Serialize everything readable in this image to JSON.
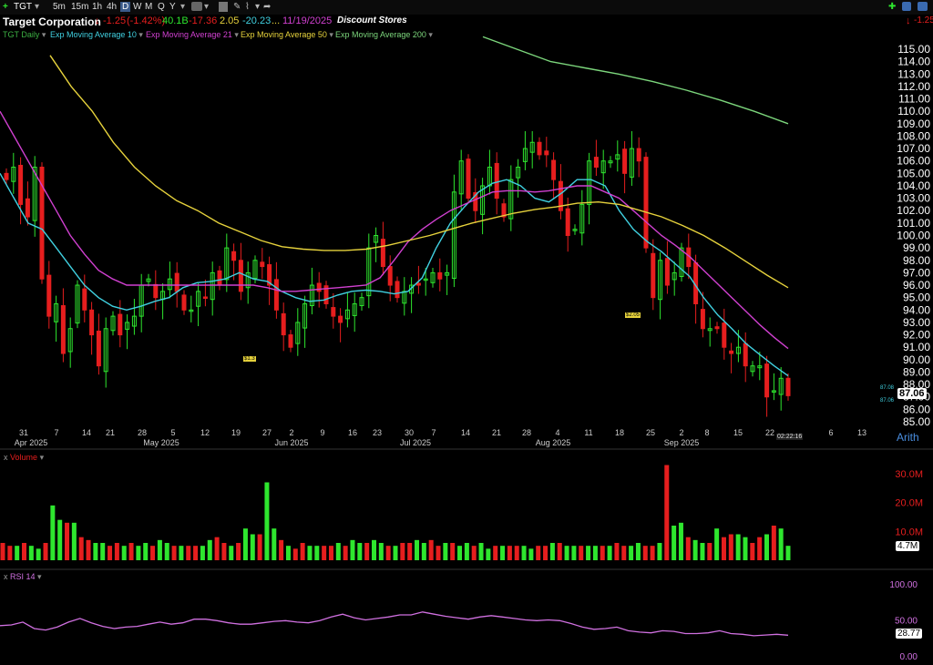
{
  "toolbar": {
    "add_symbol": "+",
    "symbol": "TGT",
    "intervals": [
      "5m",
      "15m",
      "1h",
      "4h",
      "D",
      "W",
      "M",
      "Q",
      "Y"
    ],
    "active_interval": "D"
  },
  "quote": {
    "company": "Target Corporation",
    "change": "-1.25",
    "change_pct": "(-1.42%)",
    "v1": "40.1B",
    "v2": "-17.36",
    "v3": "2.05",
    "v4": "-20.23",
    "ellipsis": "...",
    "date": "11/19/2025",
    "industry": "Discount Stores",
    "right_change": "-1.25"
  },
  "legend": {
    "items": [
      {
        "label": "TGT Daily",
        "color": "#3cb043"
      },
      {
        "label": "Exp Moving Average 10",
        "color": "#40d0e0"
      },
      {
        "label": "Exp Moving Average 21",
        "color": "#d040d0"
      },
      {
        "label": "Exp Moving Average 50",
        "color": "#e6d23c"
      },
      {
        "label": "Exp Moving Average 200",
        "color": "#7cd67c"
      }
    ]
  },
  "colors": {
    "up": "#2ee62e",
    "down": "#e61e1e",
    "ema10": "#40d0e0",
    "ema21": "#d040d0",
    "ema50": "#e6d23c",
    "ema200": "#7cd67c",
    "rsi": "#d070e0"
  },
  "chart_data": [
    {
      "type": "candlestick",
      "title": "TGT Daily",
      "ylim": [
        85,
        115.5
      ],
      "y_ticks": [
        "115.00",
        "114.00",
        "113.00",
        "112.00",
        "111.00",
        "110.00",
        "109.00",
        "108.00",
        "107.00",
        "106.00",
        "105.00",
        "104.00",
        "103.00",
        "102.00",
        "101.00",
        "100.00",
        "99.00",
        "98.00",
        "97.00",
        "96.00",
        "95.00",
        "94.00",
        "93.00",
        "92.00",
        "91.00",
        "90.00",
        "89.00",
        "88.00",
        "87.00",
        "86.00",
        "85.00"
      ],
      "x_day_ticks": [
        "31",
        "7",
        "14",
        "21",
        "28",
        "5",
        "12",
        "19",
        "27",
        "2",
        "9",
        "16",
        "23",
        "30",
        "7",
        "14",
        "21",
        "28",
        "4",
        "11",
        "18",
        "25",
        "2",
        "8",
        "15",
        "22",
        "6",
        "13"
      ],
      "x_month_labels": [
        "Apr 2025",
        "May 2025",
        "Jun 2025",
        "Jul 2025",
        "Aug 2025",
        "Sep 2025"
      ],
      "scale_label": "Arith",
      "last_price": "87.06",
      "side_labels": [
        "87.08",
        "87.06"
      ],
      "time_label": "02:22:16",
      "annotations": [
        "$1.3",
        "$2.05"
      ],
      "closes": [
        104.5,
        105.5,
        102.5,
        101.5,
        105.5,
        96.5,
        93.5,
        94.5,
        90.5,
        92.5,
        96,
        94,
        92,
        89.5,
        92.5,
        93.5,
        92,
        93,
        93.5,
        96,
        96.5,
        95,
        95.5,
        96.5,
        95.5,
        94,
        94,
        95.5,
        95,
        97,
        96,
        99,
        98,
        95.5,
        97,
        98,
        97.5,
        96,
        94,
        92,
        91,
        93,
        94.5,
        96,
        95.5,
        94.5,
        93.5,
        93,
        94,
        94.5,
        95,
        99,
        100,
        97.5,
        96,
        95,
        95.5,
        96,
        96,
        96.5,
        97,
        96.5,
        97,
        103.5,
        106,
        103,
        102,
        104,
        105.5,
        103,
        101.5,
        104.5,
        105.5,
        107,
        107.5,
        106.5,
        106.5,
        104.5,
        102,
        100,
        100.5,
        102.5,
        106,
        105.5,
        106,
        106,
        106.5,
        105,
        107,
        106,
        99,
        95,
        98,
        96,
        97,
        99,
        97.5,
        94.5,
        92.5,
        92.5,
        92.5,
        91,
        90.5,
        91,
        89.5,
        89.5,
        89.5,
        87,
        87.5,
        88.5,
        87.1
      ],
      "ema10": [
        105,
        103,
        101,
        100.5,
        99,
        97.5,
        96,
        95,
        94.3,
        94,
        94.3,
        94.7,
        95,
        95.8,
        96.2,
        96.3,
        96.5,
        97,
        96.5,
        96.3,
        95.5,
        95,
        94.7,
        94.8,
        95.2,
        95.5,
        95.6,
        95.5,
        95.3,
        95.5,
        96.6,
        99,
        101,
        102.3,
        103.5,
        104.2,
        104.5,
        104,
        103,
        102.7,
        103.5,
        104.5,
        104.5,
        104,
        102,
        100.5,
        99.5,
        98.7,
        97.7,
        96.7,
        95,
        93.6,
        92.5,
        91.3,
        90.4,
        89.5,
        88.7
      ],
      "ema21": [
        110,
        108,
        106,
        104,
        102,
        100,
        98.5,
        97.2,
        96.5,
        96,
        96,
        96,
        96,
        96,
        96,
        96,
        96,
        96,
        96,
        95.8,
        95.5,
        95.5,
        95.6,
        95.7,
        95.8,
        95.9,
        96,
        96.6,
        98,
        99.5,
        100.5,
        101.3,
        102,
        102.5,
        103,
        103.5,
        103.6,
        103.6,
        103.5,
        103.6,
        103.8,
        104,
        104,
        103.5,
        103,
        102,
        101,
        100,
        99.2,
        98.3,
        97.2,
        96.1,
        95,
        93.9,
        92.8,
        91.8,
        90.9
      ],
      "ema50": [
        114.5,
        112,
        110,
        107.5,
        105.5,
        104,
        102.8,
        102,
        101,
        100.3,
        99.6,
        99.1,
        98.9,
        98.8,
        98.8,
        98.9,
        99.2,
        99.6,
        100,
        100.5,
        101,
        101.4,
        101.8,
        102.1,
        102.3,
        102.6,
        102.7,
        102.5,
        102,
        101.5,
        100.8,
        100,
        99,
        97.9,
        96.8,
        95.8
      ],
      "ema200": [
        116,
        115,
        114,
        113.5,
        113,
        112.4,
        111.7,
        110.9,
        110,
        109
      ]
    },
    {
      "type": "bar",
      "title": "Volume",
      "y_ticks": [
        "30.0M",
        "20.0M",
        "10.0M"
      ],
      "last_value": "4.7M",
      "values_m": [
        6,
        5,
        5,
        6,
        5,
        4,
        6,
        19,
        14,
        13,
        13,
        8,
        7,
        6,
        6,
        5,
        6,
        5,
        6,
        5,
        6,
        5,
        7,
        6,
        5,
        5,
        5,
        5,
        5,
        7,
        8,
        6,
        5,
        6,
        11,
        9,
        9,
        27,
        11,
        7,
        5,
        4,
        6,
        5,
        5,
        5,
        5,
        6,
        5,
        7,
        6,
        6,
        7,
        6,
        5,
        5,
        6,
        6,
        7,
        6,
        7,
        5,
        6,
        6,
        5,
        6,
        5,
        6,
        4,
        5,
        5,
        5,
        5,
        5,
        4,
        5,
        5,
        6,
        6,
        5,
        5,
        5,
        5,
        5,
        5,
        5,
        6,
        5,
        5,
        6,
        5,
        5,
        6,
        33,
        12,
        13,
        8,
        7,
        6,
        6,
        11,
        8,
        9,
        9,
        8,
        6,
        8,
        9,
        12,
        11,
        5
      ]
    },
    {
      "type": "line",
      "title": "RSI 14",
      "ylim": [
        0,
        100
      ],
      "y_ticks": [
        "100.00",
        "50.00",
        "0.00"
      ],
      "last_value": "28.77",
      "values": [
        42,
        43,
        47,
        38,
        36,
        40,
        47,
        52,
        46,
        41,
        38,
        40,
        41,
        44,
        47,
        44,
        46,
        51,
        51,
        49,
        46,
        44,
        44,
        46,
        48,
        49,
        47,
        46,
        49,
        54,
        58,
        53,
        50,
        52,
        54,
        57,
        57,
        61,
        58,
        55,
        53,
        51,
        54,
        56,
        54,
        52,
        50,
        49,
        50,
        49,
        45,
        40,
        37,
        38,
        40,
        35,
        33,
        32,
        35,
        34,
        31,
        31,
        32,
        35,
        31,
        30,
        28,
        29,
        30,
        28.77
      ]
    }
  ]
}
